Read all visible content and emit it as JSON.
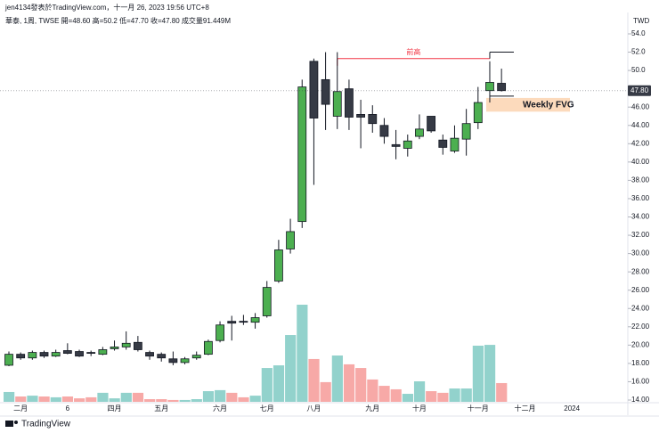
{
  "header": {
    "author_line": "jen4134發表於TradingView.com，十一月 26, 2023 19:56 UTC+8",
    "symbol_line": "華泰, 1周, TWSE  開=48.60  高=50.2  低=47.70  收=47.80  成交量91.449M"
  },
  "footer": {
    "brand": "TradingView"
  },
  "chart_data": {
    "type": "candlestick",
    "currency": "TWD",
    "categories": [
      null,
      "二月",
      null,
      null,
      null,
      "6",
      null,
      null,
      null,
      "四月",
      null,
      null,
      null,
      "五月",
      null,
      null,
      null,
      null,
      "六月",
      null,
      null,
      null,
      "七月",
      null,
      null,
      null,
      "八月",
      null,
      null,
      null,
      null,
      "九月",
      null,
      null,
      null,
      "十月",
      null,
      null,
      null,
      null,
      "十一月",
      null,
      null,
      null,
      "十二月",
      null,
      null,
      null,
      "2024"
    ],
    "open": [
      17.8,
      19.0,
      18.6,
      19.2,
      18.8,
      19.4,
      19.3,
      19.2,
      19.0,
      19.6,
      19.8,
      20.3,
      19.2,
      19.0,
      18.5,
      18.1,
      18.6,
      19.0,
      20.5,
      22.6,
      22.6,
      22.5,
      23.2,
      27.0,
      30.5,
      33.5,
      51.0,
      49.0,
      45.0,
      48.0,
      45.2,
      45.2,
      44.0,
      41.9,
      41.5,
      42.8,
      45.0,
      42.4,
      41.2,
      42.5,
      44.3,
      47.8,
      48.6,
      null,
      null,
      null,
      null,
      null,
      null
    ],
    "high": [
      19.3,
      19.2,
      19.4,
      19.4,
      19.5,
      20.2,
      19.5,
      19.4,
      19.8,
      20.5,
      21.5,
      21.0,
      19.4,
      19.2,
      19.3,
      18.7,
      19.3,
      20.6,
      22.6,
      23.2,
      23.3,
      23.5,
      27.0,
      31.5,
      33.8,
      49.0,
      51.3,
      52.0,
      52.0,
      49.0,
      46.8,
      46.2,
      44.8,
      43.5,
      43.0,
      45.2,
      45.0,
      43.0,
      44.0,
      45.8,
      48.2,
      51.0,
      50.2,
      null,
      null,
      null,
      null,
      null,
      null
    ],
    "low": [
      17.7,
      18.4,
      18.4,
      18.6,
      18.7,
      19.0,
      18.7,
      18.8,
      18.9,
      19.4,
      19.5,
      19.3,
      18.4,
      18.2,
      17.8,
      17.9,
      18.4,
      18.9,
      20.3,
      20.5,
      22.2,
      21.8,
      23.0,
      26.8,
      30.0,
      32.8,
      37.5,
      43.5,
      43.6,
      43.5,
      41.5,
      43.2,
      42.0,
      40.3,
      40.6,
      42.5,
      43.2,
      40.8,
      41.0,
      40.7,
      43.6,
      46.5,
      47.7,
      null,
      null,
      null,
      null,
      null,
      null
    ],
    "close": [
      19.0,
      18.6,
      19.2,
      18.8,
      19.2,
      19.1,
      18.8,
      19.1,
      19.5,
      19.8,
      20.2,
      19.5,
      18.8,
      18.6,
      18.1,
      18.5,
      18.9,
      20.4,
      22.2,
      22.4,
      22.5,
      23.0,
      26.3,
      30.4,
      32.4,
      48.2,
      44.8,
      46.3,
      47.7,
      44.9,
      44.9,
      44.2,
      42.8,
      41.7,
      42.3,
      43.6,
      43.4,
      41.6,
      42.6,
      44.2,
      46.5,
      48.7,
      47.8,
      null,
      null,
      null,
      null,
      null,
      null
    ],
    "volume": [
      48,
      26,
      30,
      26,
      22,
      26,
      17,
      22,
      44,
      17,
      44,
      44,
      13,
      13,
      9,
      9,
      13,
      52,
      57,
      44,
      22,
      30,
      165,
      178,
      326,
      474,
      209,
      96,
      226,
      183,
      165,
      109,
      78,
      61,
      39,
      100,
      52,
      44,
      65,
      65,
      274,
      278,
      91.449,
      null,
      null,
      null,
      null,
      null,
      null
    ],
    "up_color": "#4caf50",
    "down_color": "#363a45",
    "volume_up_color": "#92d2cc",
    "volume_down_color": "#f7a9a7",
    "ylim": [
      14,
      54
    ],
    "yticks": [
      {
        "value": 14,
        "label": "14.00"
      },
      {
        "value": 16,
        "label": "16.00"
      },
      {
        "value": 18,
        "label": "18.00"
      },
      {
        "value": 20,
        "label": "20.00"
      },
      {
        "value": 22,
        "label": "22.00"
      },
      {
        "value": 24,
        "label": "24.00"
      },
      {
        "value": 26,
        "label": "26.00"
      },
      {
        "value": 28,
        "label": "28.00"
      },
      {
        "value": 30,
        "label": "30.00"
      },
      {
        "value": 32,
        "label": "32.00"
      },
      {
        "value": 34,
        "label": "34.00"
      },
      {
        "value": 36,
        "label": "36.00"
      },
      {
        "value": 38,
        "label": "38.00"
      },
      {
        "value": 40,
        "label": "40.00"
      },
      {
        "value": 42,
        "label": "42.00"
      },
      {
        "value": 44,
        "label": "44.00"
      },
      {
        "value": 46,
        "label": "46.00"
      },
      {
        "value": 50,
        "label": "50.0"
      },
      {
        "value": 52,
        "label": "52.0"
      },
      {
        "value": 54,
        "label": "54.0"
      }
    ],
    "last_price": {
      "value": 47.8,
      "label": "47.80"
    },
    "prev_high": {
      "text": "前高",
      "value": 51.3,
      "color": "#f23645"
    },
    "fvg": {
      "text": "Weekly FVG",
      "range": [
        45.5,
        47.0
      ],
      "color": "#fbd3b0"
    },
    "marker_levels": [
      52.0,
      47.2
    ]
  }
}
